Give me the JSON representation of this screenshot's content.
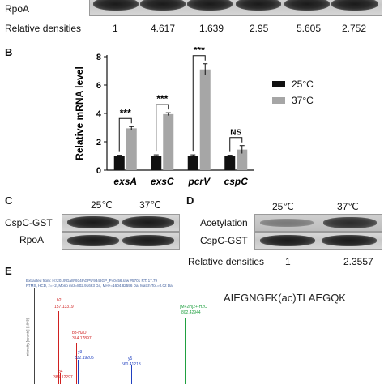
{
  "panel_a": {
    "rpoa_label": "RpoA",
    "relative_densities_label": "Relative densities",
    "densities": [
      "1",
      "4.617",
      "1.639",
      "2.95",
      "5.605",
      "2.752"
    ]
  },
  "panel_b": {
    "letter": "B",
    "legend": [
      {
        "label": "25°C",
        "color": "#111111"
      },
      {
        "label": "37°C",
        "color": "#a6a6a6"
      }
    ],
    "significance": [
      "***",
      "***",
      "***",
      "NS"
    ]
  },
  "chart_data": {
    "type": "bar",
    "ylabel": "Relative mRNA level",
    "ylim": [
      0,
      8
    ],
    "yticks": [
      0,
      2,
      4,
      6,
      8
    ],
    "categories": [
      "exsA",
      "exsC",
      "pcrV",
      "cspC"
    ],
    "series": [
      {
        "name": "25°C",
        "values": [
          1.0,
          1.0,
          1.0,
          1.0
        ],
        "errors": [
          0.05,
          0.08,
          0.08,
          0.05
        ],
        "color": "#111111"
      },
      {
        "name": "37°C",
        "values": [
          2.95,
          3.95,
          7.1,
          1.45
        ],
        "errors": [
          0.12,
          0.1,
          0.4,
          0.28
        ],
        "color": "#a6a6a6"
      }
    ],
    "grid": false
  },
  "panel_c": {
    "letter": "C",
    "temp_25": "25℃",
    "temp_37": "37℃",
    "row1_label": "CspC-GST",
    "row2_label": "RpoA"
  },
  "panel_d": {
    "letter": "D",
    "temp_25": "25℃",
    "temp_37": "37℃",
    "row1_label": "Acetylation",
    "row2_label": "CspC-GST",
    "relative_densities_label": "Relative densities",
    "densities": [
      "1",
      "2.3557"
    ]
  },
  "panel_e": {
    "letter": "E",
    "header_line1": "Extracted from: H:\\2019\\Gal\\F9348\\GP\\F9348GP_P40456.raw  #5701  RT: 17.79",
    "header_line2": "FTMS, HCD, z=+2, Mono m/z=802.91663 Da, MH+=1604.82596 Da, Match Tol.=0.02 Da",
    "peptide": "AIEGNGFK(ac)TLAEGQK",
    "ylabel": "Intensity [counts] (10^3)",
    "peaks": [
      {
        "label": "b2",
        "mz": "157.13319"
      },
      {
        "label": "b3-H2O",
        "mz": "314.17897"
      },
      {
        "label": "y3",
        "mz": "332.19205"
      },
      {
        "label": "y5",
        "mz": "560.41213"
      },
      {
        "label": "[M+2H]2+-H2O",
        "mz": "802.42944"
      },
      {
        "label": "b4",
        "mz": "385.12297"
      }
    ]
  }
}
